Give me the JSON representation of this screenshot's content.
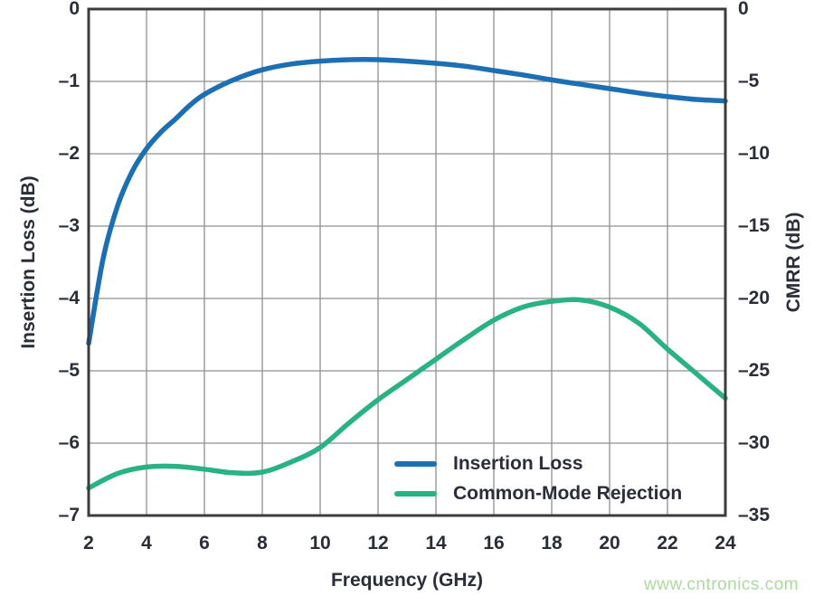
{
  "watermark": "www.cntronics.com",
  "colors": {
    "insertion_loss_line": "#1c6fb2",
    "cmrr_line": "#29b284",
    "grid": "#8f8f8f",
    "frame": "#3c3c3c",
    "text": "#2a2e39",
    "watermark": "#abdb9e",
    "background": "#ffffff"
  },
  "chart_data": {
    "type": "line",
    "title": "",
    "xlabel": "Frequency (GHz)",
    "ylabel_left": "Insertion Loss (dB)",
    "ylabel_right": "CMRR (dB)",
    "x_range": [
      2,
      24
    ],
    "x_tick_labels": [
      "2",
      "4",
      "6",
      "8",
      "10",
      "12",
      "14",
      "16",
      "18",
      "20",
      "22",
      "24"
    ],
    "y_left_range": [
      -7,
      0
    ],
    "y_left_tick_labels": [
      "0",
      "–1",
      "–2",
      "–3",
      "–4",
      "–5",
      "–6",
      "–7"
    ],
    "y_right_range": [
      -35,
      0
    ],
    "y_right_tick_labels": [
      "0",
      "–5",
      "–10",
      "–15",
      "–20",
      "–25",
      "–30",
      "–35"
    ],
    "grid": true,
    "legend_position": "inside-bottom-center",
    "series": [
      {
        "name": "Insertion Loss",
        "axis": "left",
        "color": "#1c6fb2",
        "x": [
          2,
          2.5,
          3,
          3.5,
          4,
          4.5,
          5,
          5.5,
          6,
          7,
          8,
          9,
          10,
          11,
          12,
          13,
          14,
          15,
          16,
          17,
          18,
          19,
          20,
          21,
          22,
          23,
          24
        ],
        "y": [
          -4.62,
          -3.45,
          -2.72,
          -2.25,
          -1.93,
          -1.7,
          -1.52,
          -1.33,
          -1.18,
          -0.98,
          -0.84,
          -0.76,
          -0.72,
          -0.7,
          -0.7,
          -0.72,
          -0.75,
          -0.79,
          -0.85,
          -0.91,
          -0.98,
          -1.04,
          -1.1,
          -1.16,
          -1.21,
          -1.25,
          -1.27
        ]
      },
      {
        "name": "Common-Mode Rejection",
        "axis": "right",
        "color": "#29b284",
        "x": [
          2,
          3,
          4,
          5,
          6,
          7,
          8,
          9,
          10,
          11,
          12,
          13,
          14,
          15,
          16,
          17,
          18,
          19,
          20,
          21,
          22,
          23,
          24
        ],
        "y": [
          -33.1,
          -32.1,
          -31.65,
          -31.6,
          -31.8,
          -32.05,
          -32.0,
          -31.3,
          -30.3,
          -28.6,
          -27.0,
          -25.6,
          -24.2,
          -22.8,
          -21.5,
          -20.6,
          -20.2,
          -20.1,
          -20.6,
          -21.7,
          -23.5,
          -25.2,
          -26.9
        ]
      }
    ]
  }
}
